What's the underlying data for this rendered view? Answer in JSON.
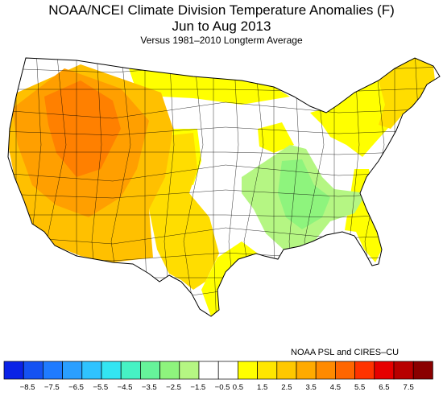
{
  "title": {
    "line1": "NOAA/NCEI Climate Division Temperature Anomalies (F)",
    "line2": "Jun to Aug 2013",
    "line3": "Versus 1981–2010 Longterm Average"
  },
  "credit": "NOAA PSL and CIRES–CU",
  "legend": {
    "colors": [
      "#0a22e6",
      "#1552f2",
      "#1f7bff",
      "#2a9fff",
      "#2fc3ff",
      "#33e5f2",
      "#46f2c4",
      "#66f39a",
      "#8ef47d",
      "#b5f683",
      "#ffffff",
      "#ffffff",
      "#ffff00",
      "#ffe600",
      "#ffc800",
      "#ffaa00",
      "#ff8a00",
      "#ff6600",
      "#ff3300",
      "#e60000",
      "#b80000",
      "#8a0000"
    ],
    "labels": [
      "−8.5",
      "−7.5",
      "−6.5",
      "−5.5",
      "−4.5",
      "−3.5",
      "−2.5",
      "−1.5",
      "−0.5",
      "0.5",
      "1.5",
      "2.5",
      "3.5",
      "4.5",
      "5.5",
      "6.5",
      "7.5"
    ]
  },
  "map": {
    "anomaly_colors": {
      "near_normal": "#ffffff",
      "plus_0_5": "#ffff00",
      "plus_1_5": "#ffdd00",
      "plus_2_5": "#ffc000",
      "plus_3_5": "#ff9f00",
      "plus_4_5": "#ff8000",
      "minus_0_5": "#b5f683",
      "minus_1_5": "#8ef47d"
    }
  }
}
